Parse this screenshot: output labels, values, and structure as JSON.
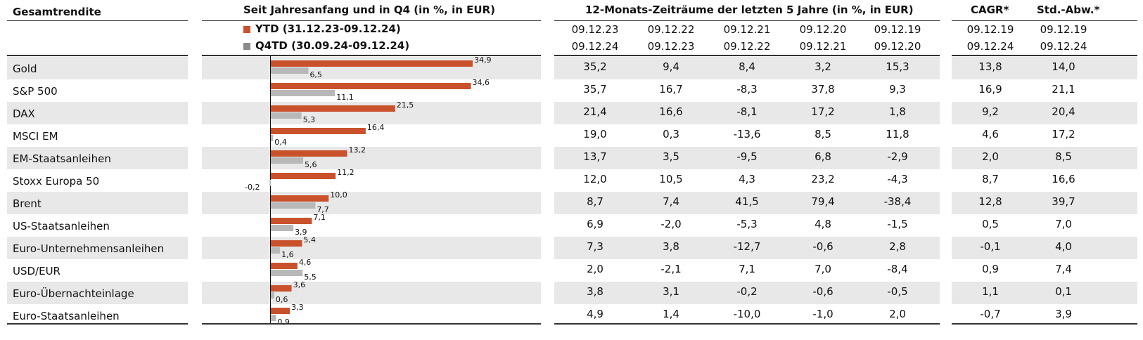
{
  "header": {
    "col_label": "Gesamtrendite",
    "chart_title": "Seit Jahresanfang und in Q4 (in %, in EUR)",
    "legend_ytd": "YTD (31.12.23-09.12.24)",
    "legend_q4": "Q4TD (30.09.24-09.12.24)",
    "periods_title": "12-Monats-Zeiträume der letzten 5 Jahre (in %, in EUR)",
    "period_start": [
      "09.12.23",
      "09.12.22",
      "09.12.21",
      "09.12.20",
      "09.12.19"
    ],
    "period_end": [
      "09.12.24",
      "09.12.23",
      "09.12.22",
      "09.12.21",
      "09.12.20"
    ],
    "cagr_title": "CAGR*",
    "std_title": "Std.-Abw.*",
    "cagr_start": "09.12.19",
    "cagr_end": "09.12.24",
    "std_start": "09.12.19",
    "std_end": "09.12.24"
  },
  "colors": {
    "ytd": "#c9522c",
    "q4": "#b8b8b8",
    "band": "#e8e8e8"
  },
  "rows": [
    {
      "name": "Gold",
      "p": [
        "35,2",
        "9,4",
        "8,4",
        "3,2",
        "15,3"
      ],
      "cagr": "13,8",
      "std": "14,0"
    },
    {
      "name": "S&P 500",
      "p": [
        "35,7",
        "16,7",
        "-8,3",
        "37,8",
        "9,3"
      ],
      "cagr": "16,9",
      "std": "21,1"
    },
    {
      "name": "DAX",
      "p": [
        "21,4",
        "16,6",
        "-8,1",
        "17,2",
        "1,8"
      ],
      "cagr": "9,2",
      "std": "20,4"
    },
    {
      "name": "MSCI EM",
      "p": [
        "19,0",
        "0,3",
        "-13,6",
        "8,5",
        "11,8"
      ],
      "cagr": "4,6",
      "std": "17,2"
    },
    {
      "name": "EM-Staatsanleihen",
      "p": [
        "13,7",
        "3,5",
        "-9,5",
        "6,8",
        "-2,9"
      ],
      "cagr": "2,0",
      "std": "8,5"
    },
    {
      "name": "Stoxx Europa 50",
      "p": [
        "12,0",
        "10,5",
        "4,3",
        "23,2",
        "-4,3"
      ],
      "cagr": "8,7",
      "std": "16,6"
    },
    {
      "name": "Brent",
      "p": [
        "8,7",
        "7,4",
        "41,5",
        "79,4",
        "-38,4"
      ],
      "cagr": "12,8",
      "std": "39,7"
    },
    {
      "name": "US-Staatsanleihen",
      "p": [
        "6,9",
        "-2,0",
        "-5,3",
        "4,8",
        "-1,5"
      ],
      "cagr": "0,5",
      "std": "7,0"
    },
    {
      "name": "Euro-Unternehmensanleihen",
      "p": [
        "7,3",
        "3,8",
        "-12,7",
        "-0,6",
        "2,8"
      ],
      "cagr": "-0,1",
      "std": "4,0"
    },
    {
      "name": "USD/EUR",
      "p": [
        "2,0",
        "-2,1",
        "7,1",
        "7,0",
        "-8,4"
      ],
      "cagr": "0,9",
      "std": "7,4"
    },
    {
      "name": "Euro-Übernachteinlage",
      "p": [
        "3,8",
        "3,1",
        "-0,2",
        "-0,6",
        "-0,5"
      ],
      "cagr": "1,1",
      "std": "0,1"
    },
    {
      "name": "Euro-Staatsanleihen",
      "p": [
        "4,9",
        "1,4",
        "-10,0",
        "-1,0",
        "2,0"
      ],
      "cagr": "-0,7",
      "std": "3,9"
    }
  ],
  "chart_data": {
    "type": "bar",
    "orientation": "horizontal",
    "categories": [
      "Gold",
      "S&P 500",
      "DAX",
      "MSCI EM",
      "EM-Staatsanleihen",
      "Stoxx Europa 50",
      "Brent",
      "US-Staatsanleihen",
      "Euro-Unternehmensanleihen",
      "USD/EUR",
      "Euro-Übernachteinlage",
      "Euro-Staatsanleihen"
    ],
    "series": [
      {
        "name": "YTD (31.12.23-09.12.24)",
        "values": [
          34.9,
          34.6,
          21.5,
          16.4,
          13.2,
          11.2,
          10.0,
          7.1,
          5.4,
          4.6,
          3.6,
          3.3
        ],
        "labels": [
          "34,9",
          "34,6",
          "21,5",
          "16,4",
          "13,2",
          "11,2",
          "10,0",
          "7,1",
          "5,4",
          "4,6",
          "3,6",
          "3,3"
        ]
      },
      {
        "name": "Q4TD (30.09.24-09.12.24)",
        "values": [
          6.5,
          11.1,
          5.3,
          0.4,
          5.6,
          -0.2,
          7.7,
          3.9,
          1.6,
          5.5,
          0.6,
          0.9
        ],
        "labels": [
          "6,5",
          "11,1",
          "5,3",
          "0,4",
          "5,6",
          "-0,2",
          "7,7",
          "3,9",
          "1,6",
          "5,5",
          "0,6",
          "0,9"
        ]
      }
    ],
    "title": "Seit Jahresanfang und in Q4 (in %, in EUR)",
    "legend": "top"
  }
}
